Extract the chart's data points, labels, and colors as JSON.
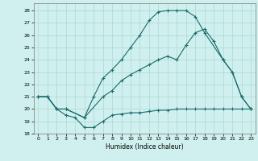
{
  "xlabel": "Humidex (Indice chaleur)",
  "bg_color": "#cff0ee",
  "grid_color": "#aad8d4",
  "line_color": "#1a6b6b",
  "xlim": [
    -0.5,
    23.5
  ],
  "ylim": [
    18,
    28.6
  ],
  "yticks": [
    18,
    19,
    20,
    21,
    22,
    23,
    24,
    25,
    26,
    27,
    28
  ],
  "xticks": [
    0,
    1,
    2,
    3,
    4,
    5,
    6,
    7,
    8,
    9,
    10,
    11,
    12,
    13,
    14,
    15,
    16,
    17,
    18,
    19,
    20,
    21,
    22,
    23
  ],
  "line1_x": [
    0,
    1,
    2,
    3,
    4,
    5,
    6,
    7,
    8,
    9,
    10,
    11,
    12,
    13,
    14,
    15,
    16,
    17,
    18,
    19,
    20,
    21,
    22,
    23
  ],
  "line1_y": [
    21,
    21,
    20,
    19.5,
    19.3,
    18.5,
    18.5,
    19.0,
    19.5,
    19.6,
    19.7,
    19.7,
    19.8,
    19.9,
    19.9,
    20.0,
    20.0,
    20.0,
    20.0,
    20.0,
    20.0,
    20.0,
    20.0,
    20.0
  ],
  "line2_x": [
    0,
    1,
    2,
    3,
    5,
    6,
    7,
    8,
    9,
    10,
    11,
    12,
    13,
    14,
    15,
    16,
    17,
    18,
    20,
    21,
    22,
    23
  ],
  "line2_y": [
    21,
    21,
    20,
    20,
    19.3,
    21.0,
    22.5,
    23.2,
    24.0,
    25.0,
    26.0,
    27.2,
    27.9,
    28.0,
    28.0,
    28.0,
    27.5,
    26.2,
    24.0,
    23.0,
    21.0,
    20.0
  ],
  "line3_x": [
    0,
    1,
    2,
    3,
    5,
    7,
    8,
    9,
    10,
    11,
    12,
    13,
    14,
    15,
    16,
    17,
    18,
    19,
    20,
    21,
    22,
    23
  ],
  "line3_y": [
    21,
    21,
    20,
    20,
    19.3,
    21.0,
    21.5,
    22.3,
    22.8,
    23.2,
    23.6,
    24.0,
    24.3,
    24.0,
    25.2,
    26.2,
    26.5,
    25.5,
    24.0,
    23.0,
    21.0,
    20.0
  ]
}
